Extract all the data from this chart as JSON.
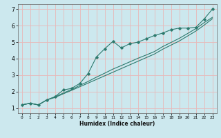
{
  "title": "",
  "xlabel": "Humidex (Indice chaleur)",
  "ylabel": "",
  "background_color": "#cce8ee",
  "grid_color": "#e8b8b8",
  "line_color": "#2d7a6e",
  "xlim": [
    -0.5,
    23.5
  ],
  "ylim": [
    0.7,
    7.3
  ],
  "xticks": [
    0,
    1,
    2,
    3,
    4,
    5,
    6,
    7,
    8,
    9,
    10,
    11,
    12,
    13,
    14,
    15,
    16,
    17,
    18,
    19,
    20,
    21,
    22,
    23
  ],
  "yticks": [
    1,
    2,
    3,
    4,
    5,
    6,
    7
  ],
  "series1_x": [
    0,
    1,
    2,
    3,
    4,
    5,
    6,
    7,
    8,
    9,
    10,
    11,
    12,
    13,
    14,
    15,
    16,
    17,
    18,
    19,
    20,
    21,
    22,
    23
  ],
  "series1_y": [
    1.2,
    1.3,
    1.2,
    1.5,
    1.7,
    2.1,
    2.2,
    2.5,
    3.1,
    4.1,
    4.6,
    5.05,
    4.65,
    4.9,
    5.0,
    5.2,
    5.4,
    5.55,
    5.75,
    5.85,
    5.85,
    5.9,
    6.4,
    7.0
  ],
  "series2_x": [
    0,
    1,
    2,
    3,
    4,
    5,
    6,
    7,
    8,
    9,
    10,
    11,
    12,
    13,
    14,
    15,
    16,
    17,
    18,
    19,
    20,
    21,
    22,
    23
  ],
  "series2_y": [
    1.2,
    1.3,
    1.2,
    1.5,
    1.65,
    1.87,
    2.08,
    2.3,
    2.52,
    2.74,
    2.96,
    3.18,
    3.4,
    3.62,
    3.84,
    4.06,
    4.28,
    4.57,
    4.82,
    5.07,
    5.37,
    5.67,
    6.03,
    6.42
  ],
  "series3_x": [
    0,
    1,
    2,
    3,
    4,
    5,
    6,
    7,
    8,
    9,
    10,
    11,
    12,
    13,
    14,
    15,
    16,
    17,
    18,
    19,
    20,
    21,
    22,
    23
  ],
  "series3_y": [
    1.2,
    1.3,
    1.2,
    1.5,
    1.68,
    1.92,
    2.13,
    2.38,
    2.62,
    2.88,
    3.12,
    3.37,
    3.58,
    3.8,
    4.02,
    4.22,
    4.43,
    4.73,
    4.98,
    5.23,
    5.52,
    5.82,
    6.18,
    6.5
  ]
}
